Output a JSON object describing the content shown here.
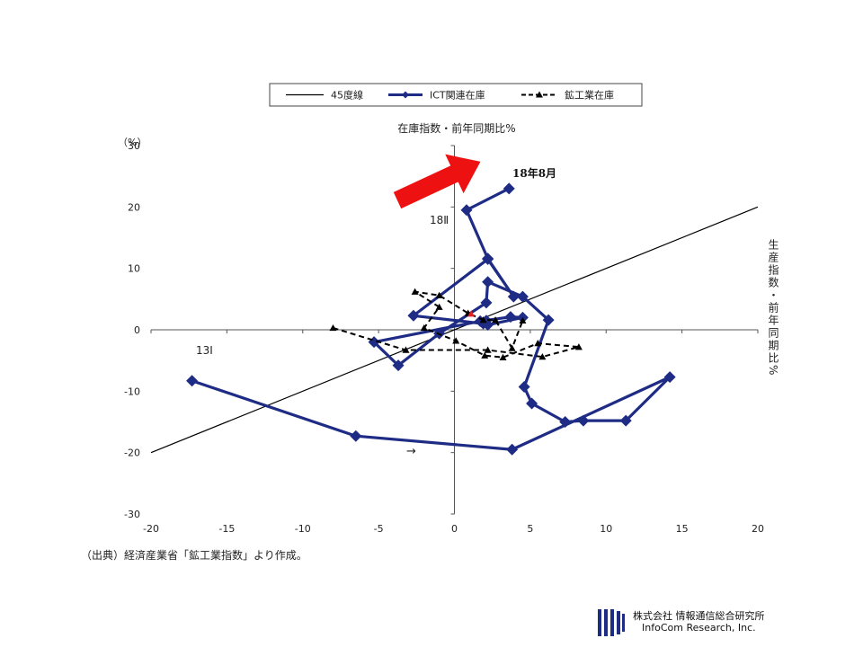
{
  "chart_data": {
    "type": "scatter",
    "title": "在庫指数・前年同期比%",
    "ylabel": "生産指数・前年同期比%",
    "y_unit": "（%）",
    "xlim": [
      -20,
      20
    ],
    "ylim": [
      -30,
      30
    ],
    "x_ticks": [
      -20,
      -15,
      -10,
      -5,
      0,
      5,
      10,
      15,
      20
    ],
    "y_ticks": [
      -30,
      -20,
      -10,
      0,
      10,
      20,
      30
    ],
    "x_tick_labels": [
      "-20",
      "-15",
      "-10",
      "-5",
      "0",
      "5",
      "10",
      "15",
      "20"
    ],
    "y_tick_labels": [
      "-30",
      "-20",
      "-10",
      "0",
      "10",
      "20",
      "30"
    ],
    "grid": false,
    "legend_position": "top",
    "annotations": {
      "start": "13Ⅰ",
      "mid": "18Ⅱ",
      "end": "18年8月",
      "arrow": "→"
    },
    "series": [
      {
        "name": "45度線",
        "style": "line",
        "color": "#000000",
        "x": [
          -20,
          20
        ],
        "y": [
          -20,
          20
        ]
      },
      {
        "name": "ICT関連在庫",
        "style": "diamond-line",
        "color": "#1f2c85",
        "x": [
          -17.3,
          -6.5,
          3.8,
          14.2,
          11.3,
          8.5,
          7.3,
          5.1,
          4.6,
          6.2,
          4.5,
          2.2,
          2.1,
          -1.0,
          -3.7,
          -5.3,
          1.7,
          3.7,
          4.5,
          2.2,
          2.1,
          1.9,
          -2.7,
          2.2,
          3.9,
          2.2,
          0.8,
          3.6
        ],
        "y": [
          -8.3,
          -17.3,
          -19.5,
          -7.7,
          -14.8,
          -14.8,
          -15.0,
          -12.0,
          -9.3,
          1.6,
          5.4,
          7.8,
          4.4,
          -0.6,
          -5.8,
          -2.0,
          1.4,
          2.1,
          2.0,
          0.8,
          1.5,
          1.0,
          2.3,
          11.5,
          5.4,
          11.6,
          19.5,
          23.0
        ]
      },
      {
        "name": "鉱工業在庫",
        "style": "triangle-dash",
        "color": "#000000",
        "x": [
          -8.0,
          -3.2,
          2.2,
          5.8,
          8.2,
          5.5,
          3.2,
          2.0,
          0.1,
          -2.0,
          -1.0,
          -2.6,
          -1.0,
          0.9,
          1.9,
          2.7,
          3.8,
          4.5
        ],
        "y": [
          0.3,
          -3.3,
          -3.3,
          -4.4,
          -2.8,
          -2.2,
          -4.5,
          -4.2,
          -1.8,
          0.3,
          3.7,
          6.2,
          5.6,
          2.7,
          1.6,
          1.6,
          -3.0,
          1.5
        ]
      },
      {
        "name": "",
        "style": "highlight-point",
        "color": "#dd2222",
        "x": [
          1.1
        ],
        "y": [
          2.6
        ]
      }
    ]
  },
  "source_note": "（出典）経済産業省「鉱工業指数」より作成。",
  "footer": {
    "company_jp": "株式会社  情報通信総合研究所",
    "company_en": "InfoCom Research, Inc."
  }
}
